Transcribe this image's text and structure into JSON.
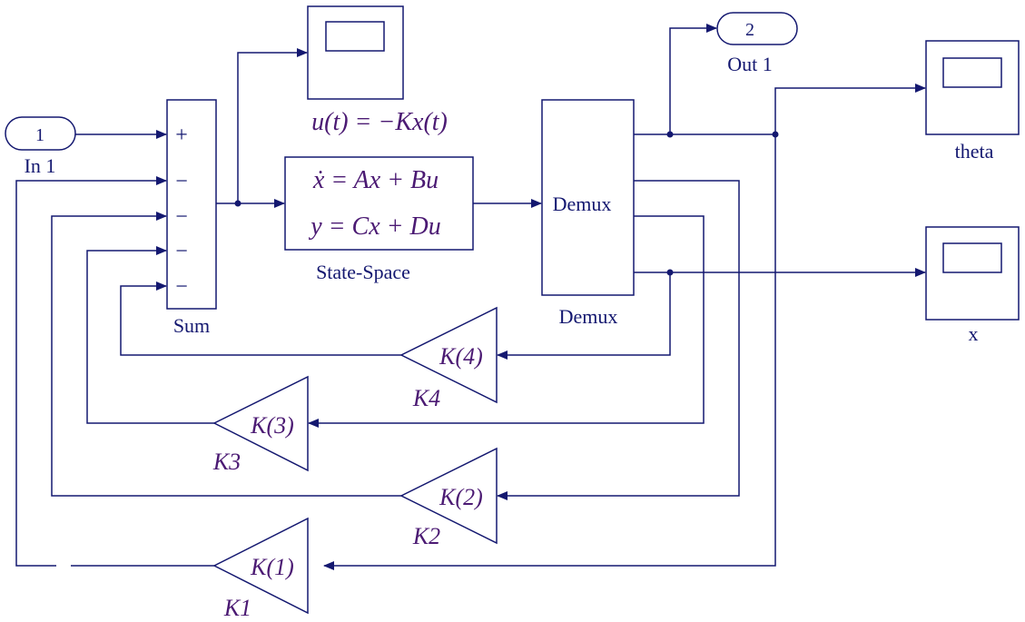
{
  "ports": {
    "in1": {
      "number": "1",
      "label": "In 1"
    },
    "out1": {
      "number": "2",
      "label": "Out 1"
    }
  },
  "sum": {
    "label": "Sum",
    "signs": [
      "+",
      "−",
      "−",
      "−",
      "−"
    ]
  },
  "scope_u": {
    "label_main": "u(t) = −Kx(t)"
  },
  "state_space": {
    "eq1": "ẋ = Ax + Bu",
    "eq2": "y = Cx + Du",
    "label": "State-Space"
  },
  "demux": {
    "inner_label": "Demux",
    "label": "Demux"
  },
  "scope_theta": {
    "label": "theta"
  },
  "scope_x": {
    "label": "x"
  },
  "gains": [
    {
      "inner": "K(4)",
      "label": "K4"
    },
    {
      "inner": "K(3)",
      "label": "K3"
    },
    {
      "inner": "K(2)",
      "label": "K2"
    },
    {
      "inner": "K(1)",
      "label": "K1"
    }
  ],
  "colors": {
    "line": "#141870",
    "math": "#4b1a73",
    "background": "#ffffff"
  }
}
